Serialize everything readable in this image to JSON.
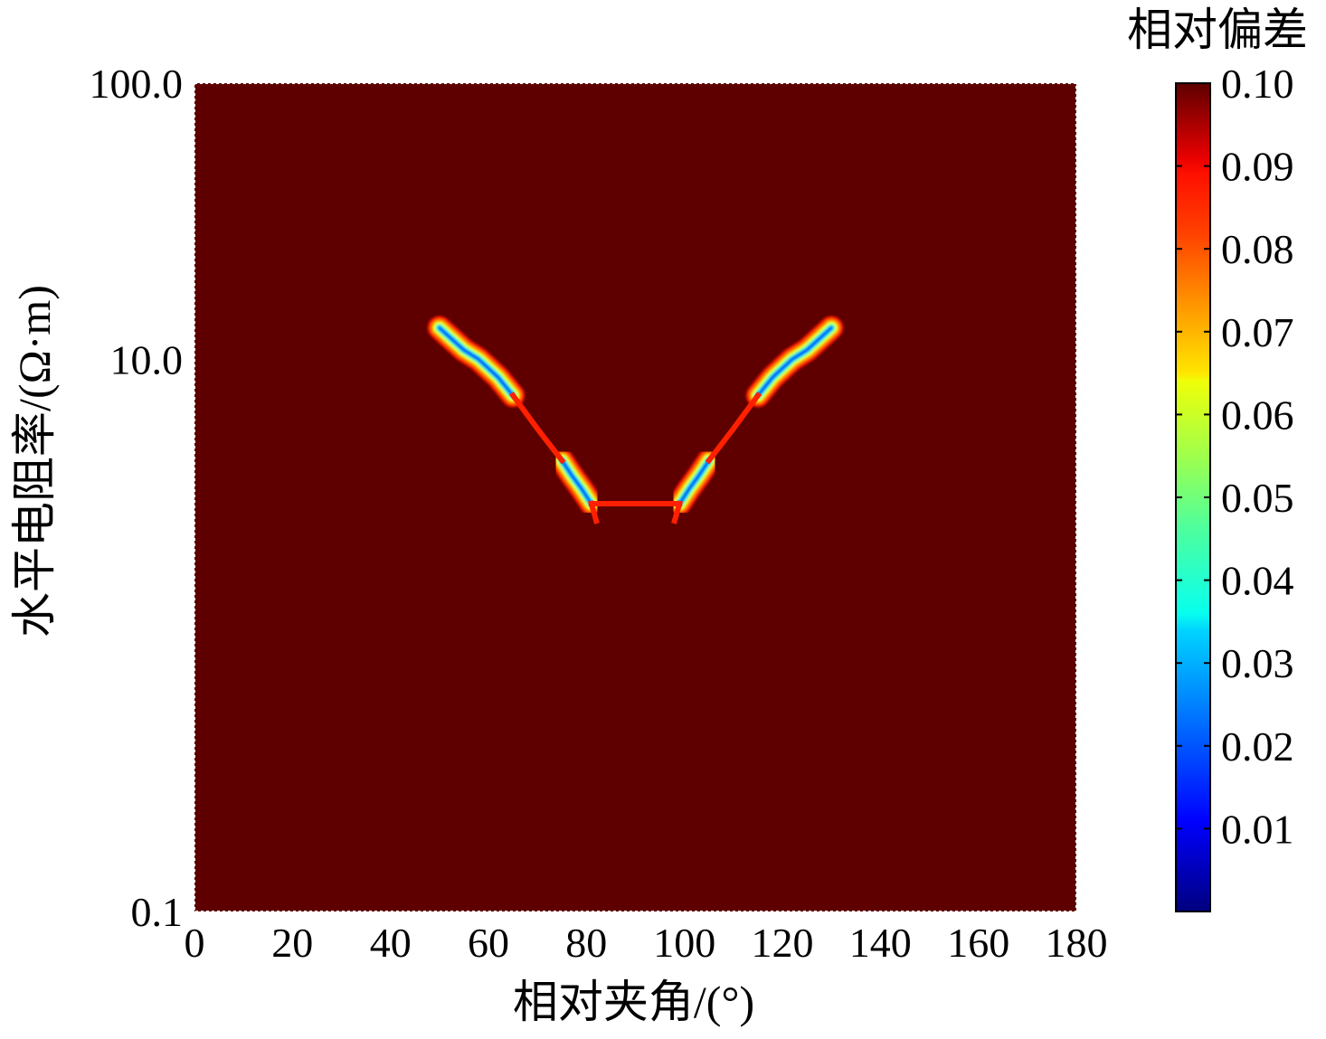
{
  "chart_data": {
    "type": "heatmap",
    "xlabel": "相对夹角/(°)",
    "ylabel": "水平电阻率/(Ω·m)",
    "x_ticks": [
      "0",
      "20",
      "40",
      "60",
      "80",
      "100",
      "120",
      "140",
      "160",
      "180"
    ],
    "x_tick_values": [
      0,
      20,
      40,
      60,
      80,
      100,
      120,
      140,
      160,
      180
    ],
    "xlim": [
      0,
      180
    ],
    "y_ticks": [
      "0.1",
      "10.0",
      "100.0"
    ],
    "y_tick_values": [
      0.1,
      10.0,
      100.0
    ],
    "ylim": [
      0.1,
      100.0
    ],
    "y_scale": "log",
    "colorbar": {
      "title": "相对偏差",
      "ticks": [
        "0.01",
        "0.02",
        "0.03",
        "0.04",
        "0.05",
        "0.06",
        "0.07",
        "0.08",
        "0.09",
        "0.10"
      ],
      "tick_values": [
        0.01,
        0.02,
        0.03,
        0.04,
        0.05,
        0.06,
        0.07,
        0.08,
        0.09,
        0.1
      ],
      "range": [
        0.0,
        0.1
      ],
      "colormap": "jet",
      "placement": "right"
    },
    "background_value": 0.1,
    "colors": {
      "max": "#5e0000",
      "min": "#000080"
    },
    "features": [
      {
        "name": "",
        "x": [
          50,
          55,
          58,
          62,
          65
        ],
        "y": [
          13.0,
          10.8,
          10.0,
          8.6,
          7.4
        ]
      },
      {
        "name": "",
        "x": [
          75,
          77,
          79,
          81
        ],
        "y": [
          4.3,
          3.8,
          3.4,
          3.0
        ]
      },
      {
        "name": "",
        "x": [
          99,
          101,
          103,
          105
        ],
        "y": [
          3.0,
          3.4,
          3.8,
          4.3
        ]
      },
      {
        "name": "",
        "x": [
          115,
          118,
          122,
          125,
          130
        ],
        "y": [
          7.4,
          8.6,
          10.0,
          10.8,
          13.0
        ]
      }
    ]
  }
}
